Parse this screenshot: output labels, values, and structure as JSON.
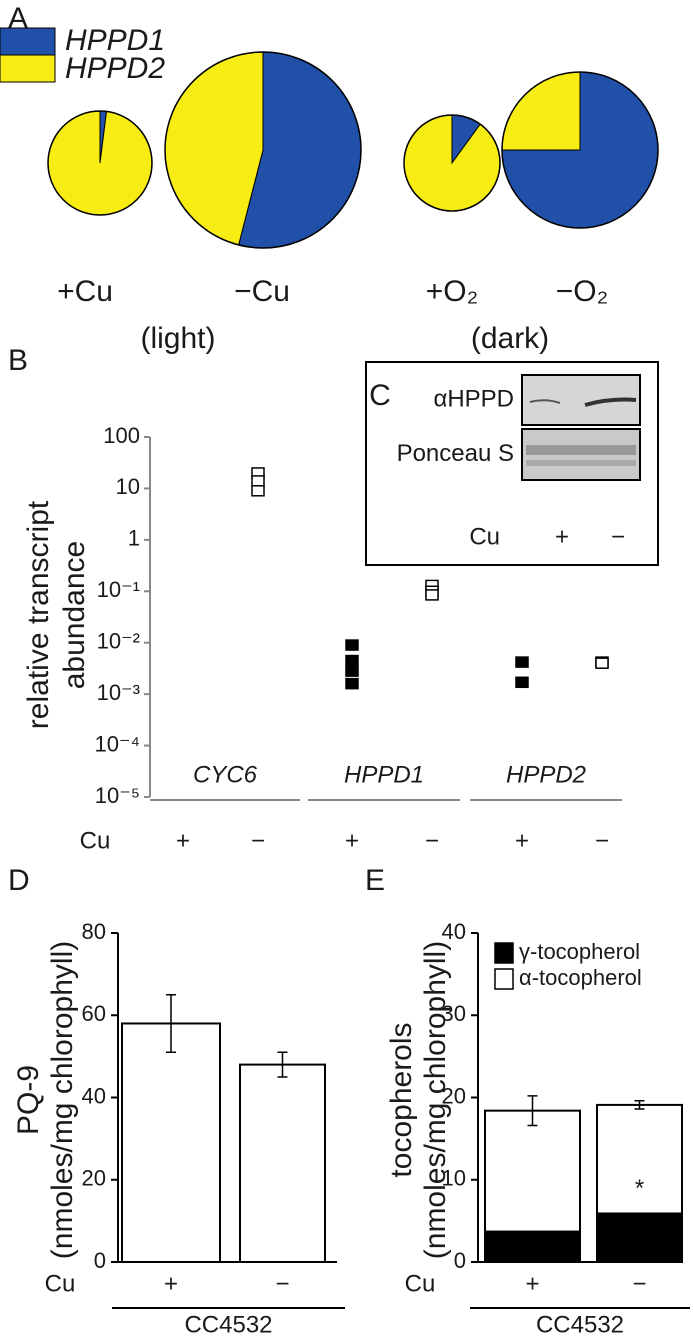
{
  "chart_data": [
    {
      "type": "pie",
      "panel": "A",
      "categories": [
        "HPPD1",
        "HPPD2"
      ],
      "colors": [
        "#2150a8",
        "#f7ec13"
      ],
      "pies": [
        {
          "label": "+Cu",
          "values": [
            2,
            98
          ]
        },
        {
          "label": "−Cu",
          "values": [
            54,
            46
          ]
        },
        {
          "label": "+O₂",
          "values": [
            10,
            90
          ]
        },
        {
          "label": "−O₂",
          "values": [
            75,
            25
          ]
        }
      ],
      "groups": [
        "(light)",
        "(dark)"
      ]
    },
    {
      "type": "scatter",
      "panel": "B",
      "log_y": true,
      "ylabel": [
        "relative transcript",
        "abundance"
      ],
      "ylim": [
        1e-05,
        100
      ],
      "yticks": [
        100,
        10,
        1,
        {
          "value": 0.1,
          "label": "10⁻¹"
        },
        {
          "value": 0.01,
          "label": "10⁻²"
        },
        {
          "value": 0.001,
          "label": "10⁻³"
        },
        {
          "value": 0.0001,
          "label": "10⁻⁴"
        },
        {
          "value": 1e-05,
          "label": "10⁻⁵"
        }
      ],
      "categories": [
        "CYC6",
        "HPPD1",
        "HPPD2"
      ],
      "x_prefix": "Cu",
      "levels": [
        "+",
        "−"
      ],
      "marker_fill": [
        "#000000",
        "#ffffff"
      ],
      "points": [
        [
          [],
          [
            20,
            14,
            9
          ]
        ],
        [
          [
            0.009,
            0.0045,
            0.0028,
            0.0016
          ],
          [
            0.13,
            0.1,
            0.085
          ]
        ],
        [
          [
            0.0042,
            0.0017
          ],
          [
            0.0042,
            0.004
          ]
        ]
      ],
      "inset": {
        "panel": "C",
        "rows": [
          "αHPPD",
          "Ponceau S"
        ],
        "x_prefix": "Cu",
        "levels": [
          "+",
          "−"
        ]
      }
    },
    {
      "type": "bar",
      "panel": "D",
      "ylabel": [
        "PQ-9",
        "(nmoles/mg chlorophyll)"
      ],
      "x_prefix": "Cu",
      "categories": [
        "+",
        "−"
      ],
      "group": "CC4532",
      "ylim": [
        0,
        80
      ],
      "yticks": [
        0,
        20,
        40,
        60,
        80
      ],
      "series": [
        {
          "color": "#ffffff",
          "values": [
            58,
            48
          ],
          "errors": [
            7,
            3
          ]
        }
      ]
    },
    {
      "type": "stacked_bar",
      "panel": "E",
      "ylabel": [
        "tocopherols",
        "(nmoles/mg chlorophyll)"
      ],
      "x_prefix": "Cu",
      "categories": [
        "+",
        "−"
      ],
      "group": "CC4532",
      "ylim": [
        0,
        40
      ],
      "yticks": [
        0,
        10,
        20,
        30,
        40
      ],
      "legend": "top-left",
      "series": [
        {
          "name": "γ-tocopherol",
          "color": "#000000",
          "values": [
            3.7,
            5.9
          ],
          "errors": [
            0.5,
            0.7
          ]
        },
        {
          "name": "α-tocopherol",
          "color": "#ffffff",
          "values": [
            14.7,
            13.2
          ],
          "errors": [
            1.8,
            0.5
          ]
        }
      ],
      "annotations": [
        {
          "text": "*",
          "series": 0,
          "index": 1
        }
      ]
    }
  ]
}
